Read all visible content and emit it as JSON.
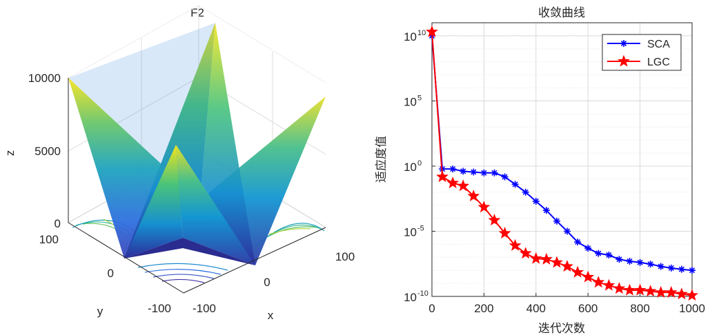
{
  "surface_plot": {
    "title": "F2",
    "xlabel": "x",
    "ylabel": "y",
    "zlabel": "z",
    "x_ticks": [
      "-100",
      "0",
      "100"
    ],
    "y_ticks": [
      "-100",
      "0",
      "100"
    ],
    "z_ticks": [
      "0",
      "5000",
      "10000"
    ]
  },
  "chart_data": {
    "type": "line",
    "title": "收敛曲线",
    "xlabel": "迭代次数",
    "ylabel": "适应度值",
    "yscale": "log",
    "xlim": [
      0,
      1000
    ],
    "ylim": [
      1e-10,
      100000000000.0
    ],
    "x_ticks": [
      "0",
      "200",
      "400",
      "600",
      "800",
      "1000"
    ],
    "y_ticks": [
      {
        "value": 1e-10,
        "base": "10",
        "exp": "-10"
      },
      {
        "value": 1e-05,
        "base": "10",
        "exp": "-5"
      },
      {
        "value": 1,
        "base": "10",
        "exp": "0"
      },
      {
        "value": 100000.0,
        "base": "10",
        "exp": "5"
      },
      {
        "value": 10000000000.0,
        "base": "10",
        "exp": "10"
      }
    ],
    "grid": true,
    "legend_position": "top-right",
    "series": [
      {
        "name": "SCA",
        "color": "#0000ff",
        "marker": "asterisk",
        "x": [
          0,
          40,
          80,
          120,
          160,
          200,
          240,
          280,
          320,
          360,
          400,
          440,
          480,
          520,
          560,
          600,
          640,
          680,
          720,
          760,
          800,
          840,
          880,
          920,
          960,
          1000
        ],
        "y": [
          10000000000.0,
          0.6,
          0.6,
          0.4,
          0.35,
          0.3,
          0.3,
          0.15,
          0.04,
          0.01,
          0.002,
          0.0004,
          6e-05,
          1e-05,
          1.5e-06,
          5e-07,
          2e-07,
          1.5e-07,
          7e-08,
          5e-08,
          4e-08,
          3e-08,
          2e-08,
          1.5e-08,
          1.2e-08,
          1e-08
        ]
      },
      {
        "name": "LGC",
        "color": "#ff0000",
        "marker": "pentagram",
        "x": [
          0,
          40,
          80,
          120,
          160,
          200,
          240,
          280,
          320,
          360,
          400,
          440,
          480,
          520,
          560,
          600,
          640,
          680,
          720,
          760,
          800,
          840,
          880,
          920,
          960,
          1000
        ],
        "y": [
          20000000000.0,
          0.15,
          0.05,
          0.03,
          0.005,
          0.0007,
          7e-05,
          7e-06,
          8e-07,
          2e-07,
          8e-08,
          7e-08,
          4e-08,
          2e-08,
          7e-09,
          3e-09,
          1.2e-09,
          7e-10,
          4e-10,
          3e-10,
          3e-10,
          2.5e-10,
          2e-10,
          2e-10,
          1.5e-10,
          1.2e-10
        ]
      }
    ]
  }
}
